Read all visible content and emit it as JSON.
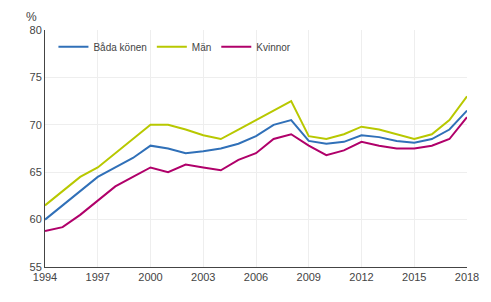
{
  "chart_data": {
    "type": "line",
    "x": [
      1994,
      1995,
      1996,
      1997,
      1998,
      1999,
      2000,
      2001,
      2002,
      2003,
      2004,
      2005,
      2006,
      2007,
      2008,
      2009,
      2010,
      2011,
      2012,
      2013,
      2014,
      2015,
      2016,
      2017,
      2018
    ],
    "series": [
      {
        "name": "Båda könen",
        "color": "#3070b8",
        "values": [
          60.0,
          61.5,
          63.0,
          64.5,
          65.5,
          66.5,
          67.8,
          67.5,
          67.0,
          67.2,
          67.5,
          68.0,
          68.8,
          70.0,
          70.5,
          68.3,
          68.0,
          68.2,
          68.9,
          68.7,
          68.3,
          68.1,
          68.5,
          69.5,
          71.5
        ]
      },
      {
        "name": "Män",
        "color": "#b8c800",
        "values": [
          61.5,
          63.0,
          64.5,
          65.5,
          67.0,
          68.5,
          70.0,
          70.0,
          69.5,
          68.9,
          68.5,
          69.5,
          70.5,
          71.5,
          72.5,
          68.8,
          68.5,
          69.0,
          69.8,
          69.5,
          69.0,
          68.5,
          69.0,
          70.5,
          73.0
        ]
      },
      {
        "name": "Kvinnor",
        "color": "#b0006a",
        "values": [
          58.8,
          59.2,
          60.5,
          62.0,
          63.5,
          64.5,
          65.5,
          65.0,
          65.8,
          65.5,
          65.2,
          66.3,
          67.0,
          68.5,
          69.0,
          67.8,
          66.8,
          67.3,
          68.2,
          67.8,
          67.5,
          67.5,
          67.8,
          68.5,
          70.8
        ]
      }
    ],
    "xlim": [
      1994,
      2018
    ],
    "xticks": [
      1994,
      1997,
      2000,
      2003,
      2006,
      2009,
      2012,
      2015,
      2018
    ],
    "ylim": [
      55,
      80
    ],
    "yticks": [
      55,
      60,
      65,
      70,
      75,
      80
    ],
    "ylabel": "%",
    "grid": true,
    "legend": "upper left"
  }
}
